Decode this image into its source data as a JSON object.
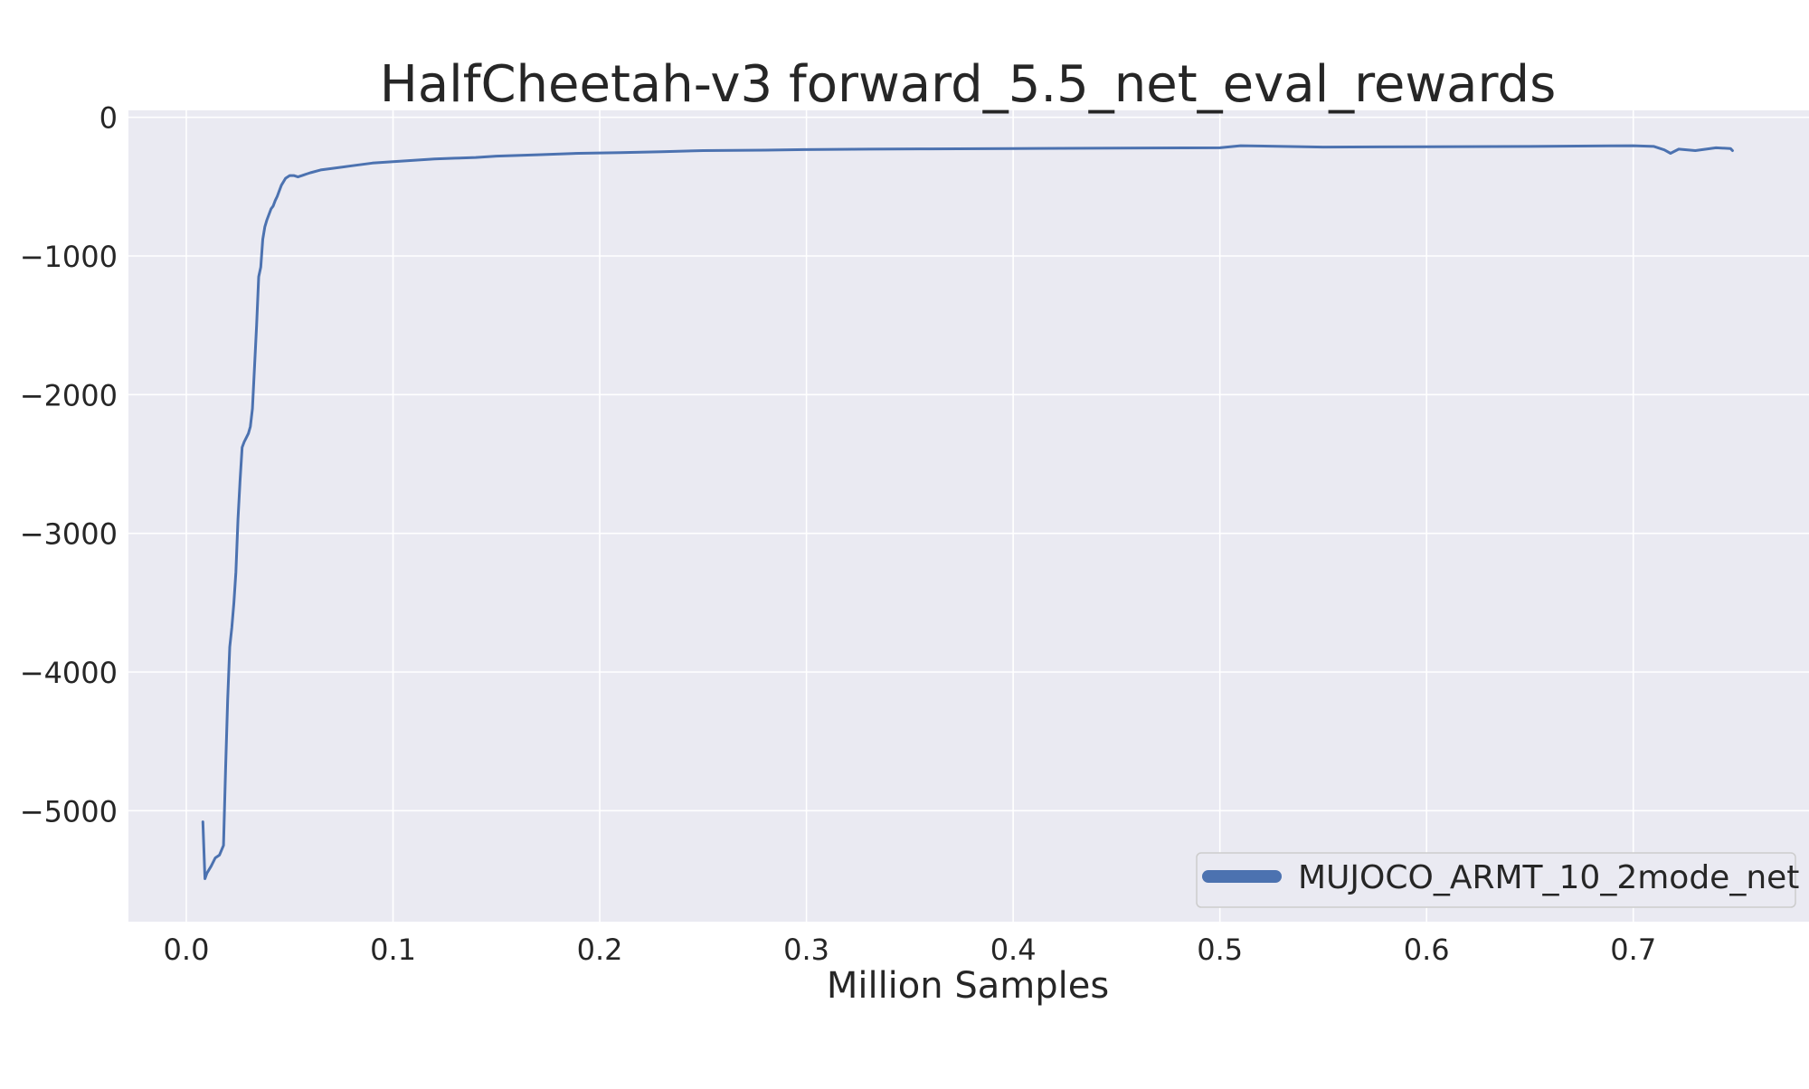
{
  "chart_data": {
    "type": "line",
    "title": "HalfCheetah-v3 forward_5.5_net_eval_rewards",
    "xlabel": "Million Samples",
    "ylabel": "",
    "xlim": [
      -0.028,
      0.785
    ],
    "ylim": [
      -5800,
      50
    ],
    "xticks": [
      0.0,
      0.1,
      0.2,
      0.3,
      0.4,
      0.5,
      0.6,
      0.7
    ],
    "xtick_labels": [
      "0.0",
      "0.1",
      "0.2",
      "0.3",
      "0.4",
      "0.5",
      "0.6",
      "0.7"
    ],
    "yticks": [
      0,
      -1000,
      -2000,
      -3000,
      -4000,
      -5000
    ],
    "ytick_labels": [
      "0",
      "−1000",
      "−2000",
      "−3000",
      "−4000",
      "−5000"
    ],
    "grid": true,
    "background": "#eaeaf2",
    "grid_color": "#ffffff",
    "legend_position": "lower-right",
    "series": [
      {
        "name": "MUJOCO_ARMT_10_2mode_net",
        "color": "#4c72b0",
        "x": [
          0.008,
          0.009,
          0.01,
          0.012,
          0.014,
          0.016,
          0.018,
          0.019,
          0.02,
          0.021,
          0.022,
          0.023,
          0.024,
          0.025,
          0.026,
          0.027,
          0.028,
          0.029,
          0.03,
          0.031,
          0.032,
          0.033,
          0.034,
          0.035,
          0.036,
          0.037,
          0.038,
          0.039,
          0.04,
          0.041,
          0.042,
          0.043,
          0.044,
          0.045,
          0.046,
          0.048,
          0.05,
          0.052,
          0.054,
          0.056,
          0.058,
          0.06,
          0.065,
          0.07,
          0.08,
          0.09,
          0.1,
          0.11,
          0.12,
          0.13,
          0.14,
          0.15,
          0.17,
          0.19,
          0.21,
          0.23,
          0.25,
          0.28,
          0.3,
          0.33,
          0.36,
          0.4,
          0.45,
          0.5,
          0.51,
          0.55,
          0.6,
          0.65,
          0.7,
          0.71,
          0.715,
          0.718,
          0.722,
          0.73,
          0.74,
          0.747,
          0.748
        ],
        "values": [
          -5080,
          -5490,
          -5450,
          -5400,
          -5340,
          -5320,
          -5250,
          -4700,
          -4200,
          -3820,
          -3680,
          -3500,
          -3280,
          -2900,
          -2620,
          -2380,
          -2340,
          -2310,
          -2280,
          -2230,
          -2100,
          -1800,
          -1500,
          -1150,
          -1080,
          -880,
          -790,
          -740,
          -700,
          -660,
          -640,
          -600,
          -570,
          -530,
          -490,
          -440,
          -420,
          -420,
          -430,
          -420,
          -410,
          -400,
          -380,
          -370,
          -350,
          -330,
          -320,
          -310,
          -300,
          -295,
          -290,
          -280,
          -270,
          -260,
          -255,
          -248,
          -240,
          -237,
          -233,
          -230,
          -228,
          -225,
          -222,
          -220,
          -205,
          -215,
          -212,
          -210,
          -205,
          -210,
          -235,
          -260,
          -230,
          -240,
          -220,
          -225,
          -240
        ]
      }
    ]
  }
}
